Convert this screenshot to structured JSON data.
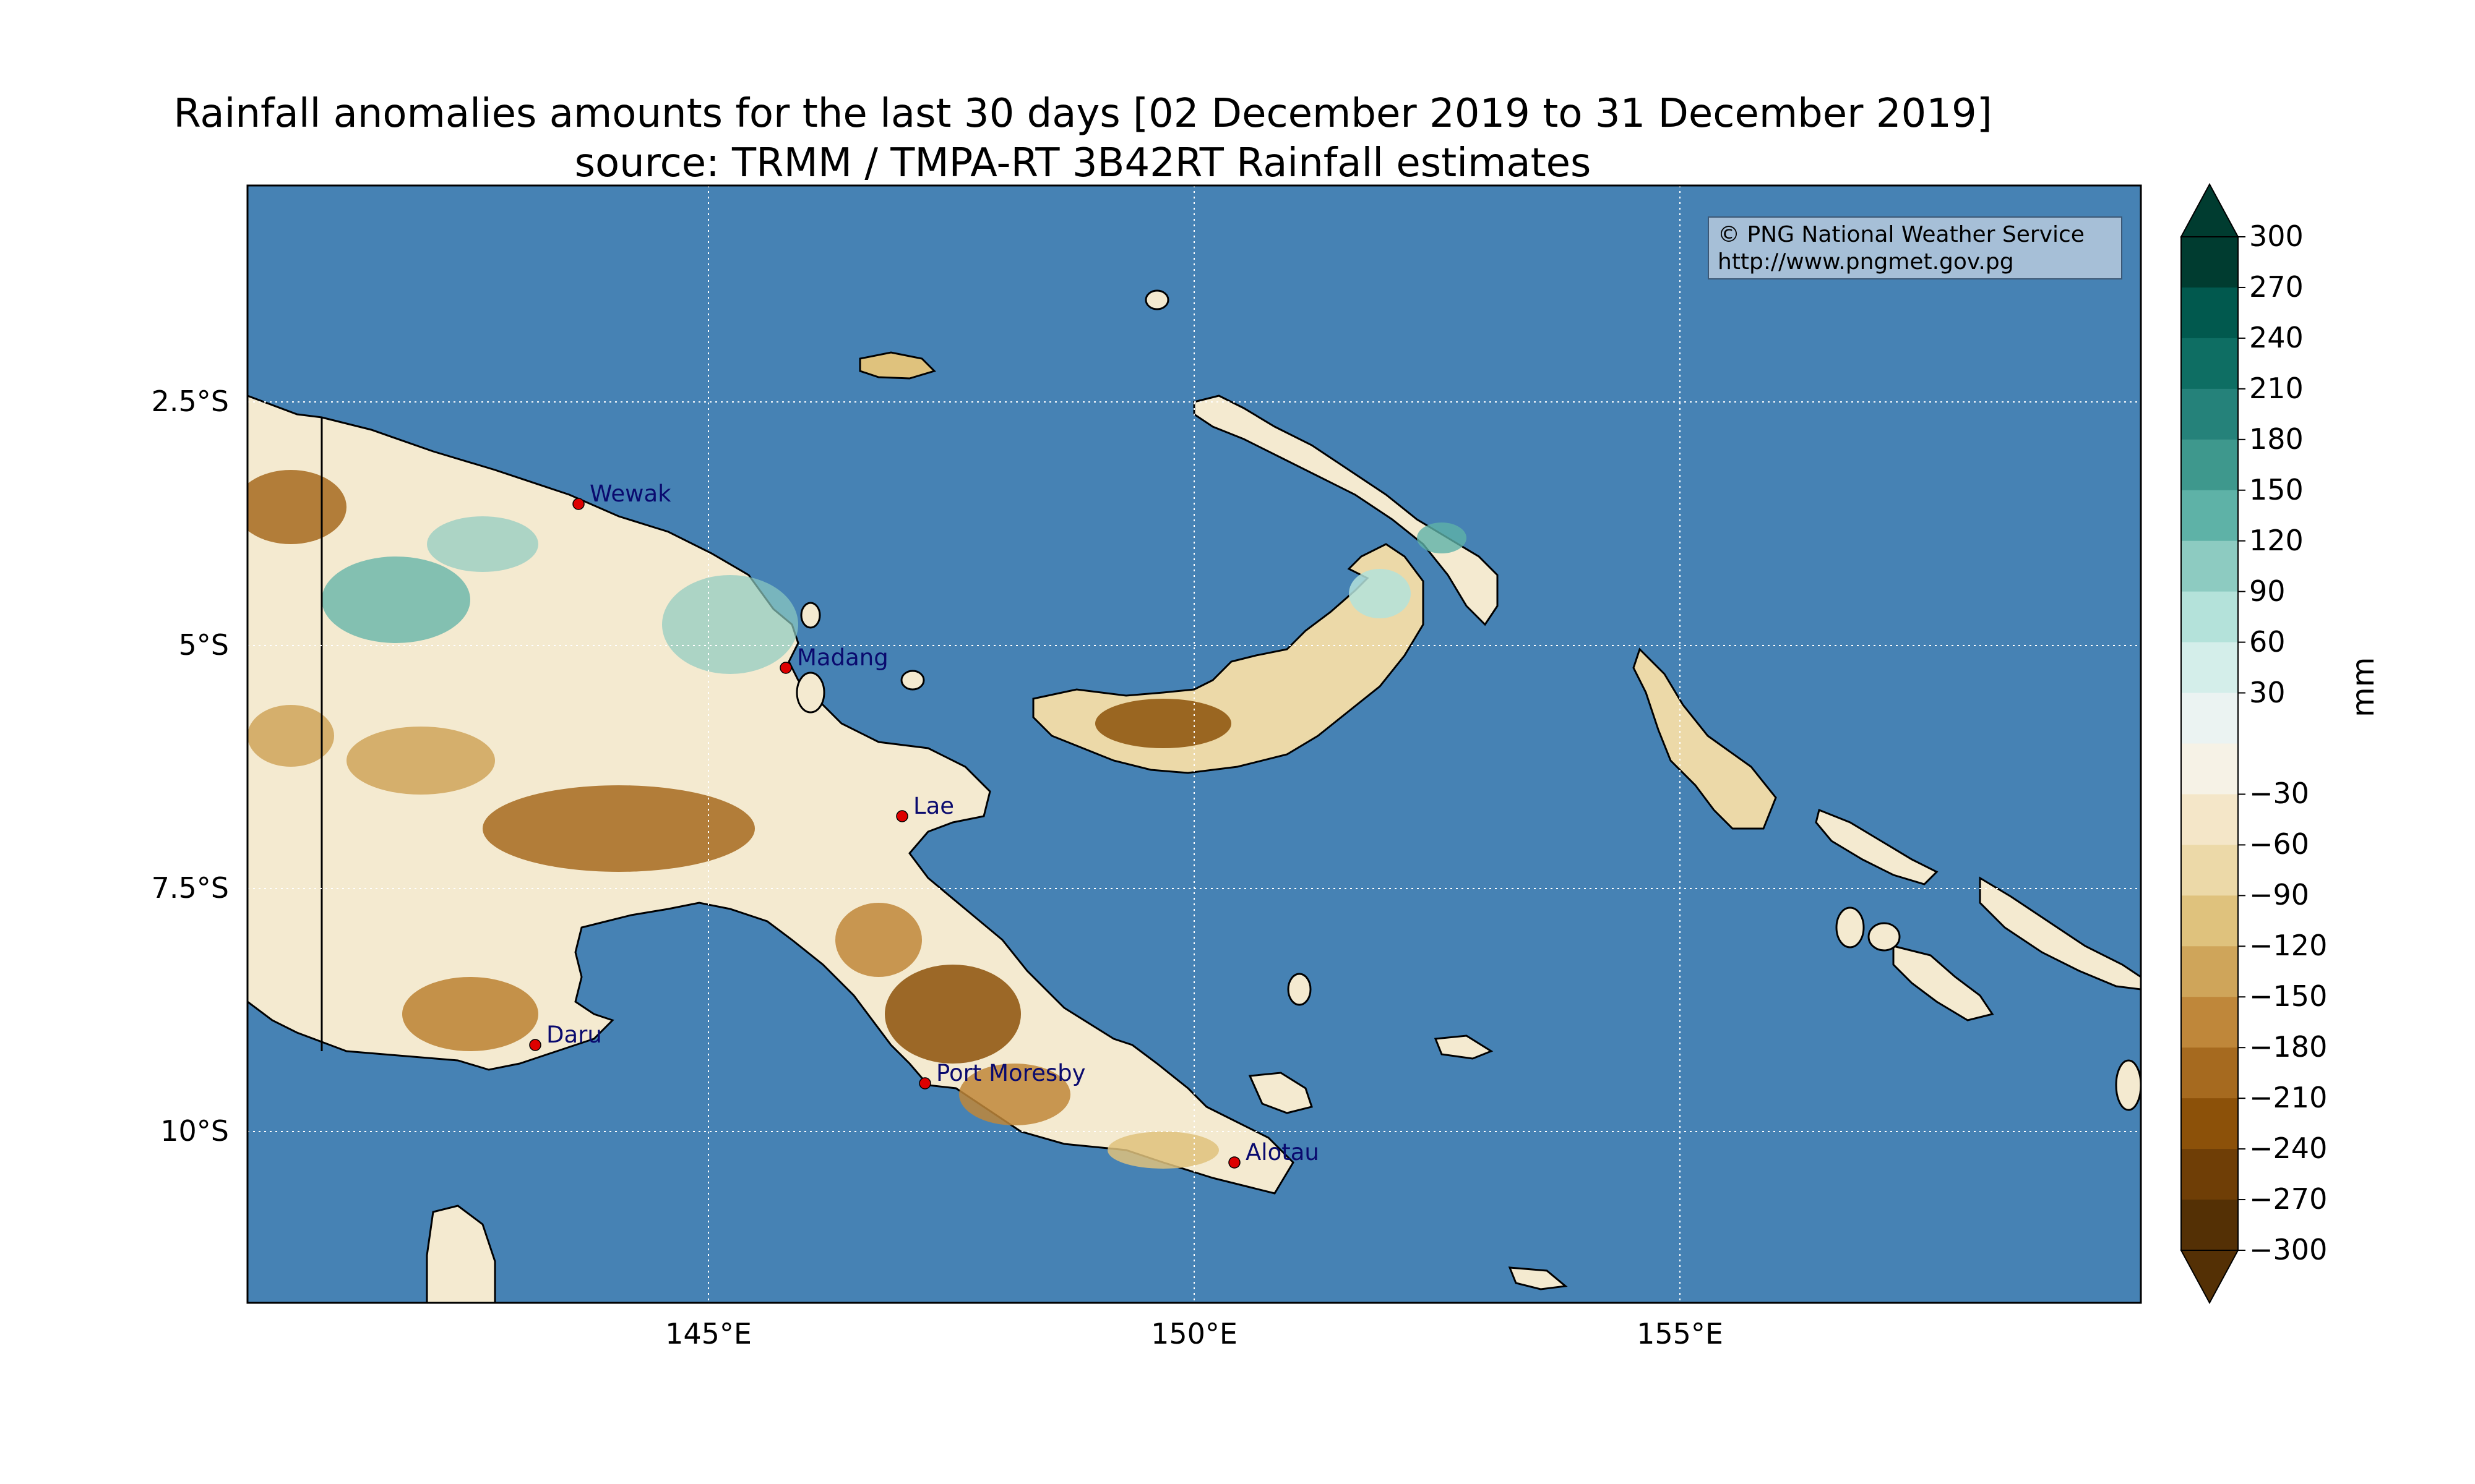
{
  "title": {
    "line1": "Rainfall anomalies amounts for the last 30 days [02 December 2019 to 31 December 2019]",
    "line2": "source: TRMM / TMPA-RT 3B42RT Rainfall estimates"
  },
  "credit": {
    "line1": "© PNG National Weather Service",
    "line2": "http://www.pngmet.gov.pg"
  },
  "axes": {
    "lat_labels": [
      "2.5°S",
      "5°S",
      "7.5°S",
      "10°S"
    ],
    "lon_labels": [
      "145°E",
      "150°E",
      "155°E"
    ]
  },
  "cities": [
    {
      "name": "Wewak"
    },
    {
      "name": "Madang"
    },
    {
      "name": "Lae"
    },
    {
      "name": "Daru"
    },
    {
      "name": "Port Moresby"
    },
    {
      "name": "Alotau"
    }
  ],
  "colorbar": {
    "unit": "mm",
    "ticks": [
      "300",
      "270",
      "240",
      "210",
      "180",
      "150",
      "120",
      "90",
      "60",
      "30",
      "−30",
      "−60",
      "−90",
      "−120",
      "−150",
      "−180",
      "−210",
      "−240",
      "−270",
      "−300"
    ],
    "colors": [
      "#003c30",
      "#01594e",
      "#0e6e63",
      "#25827a",
      "#3e988d",
      "#5eb2a7",
      "#8dcbc1",
      "#b4e2da",
      "#d4eeea",
      "#ebf3f2",
      "#f6f2e6",
      "#f4e6c8",
      "#ecd9a8",
      "#dfc27d",
      "#cfa55a",
      "#bf873a",
      "#a66a1f",
      "#8c5109",
      "#6f3e06",
      "#543005"
    ]
  },
  "colors": {
    "ocean": "#4682b4",
    "grid": "#ffffff"
  }
}
